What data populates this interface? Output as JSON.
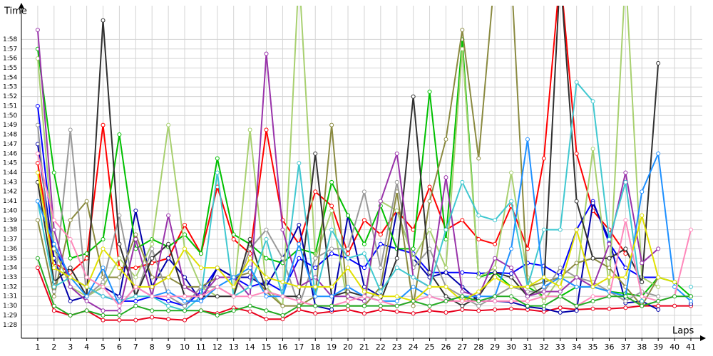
{
  "chart_data": {
    "type": "line",
    "title_y": "Time",
    "title_x": "Laps",
    "grid": true,
    "xlim": [
      0,
      41.7
    ],
    "ylim": [
      86.6,
      120.5
    ],
    "xticks": [
      1,
      2,
      3,
      4,
      5,
      6,
      7,
      8,
      9,
      10,
      11,
      12,
      13,
      14,
      15,
      16,
      17,
      18,
      19,
      20,
      21,
      22,
      23,
      24,
      25,
      26,
      27,
      28,
      29,
      30,
      31,
      32,
      33,
      34,
      35,
      36,
      37,
      38,
      39,
      40,
      41
    ],
    "yticks": [
      {
        "value": 88,
        "label": "1:28"
      },
      {
        "value": 89,
        "label": "1:29"
      },
      {
        "value": 90,
        "label": "1:30"
      },
      {
        "value": 91,
        "label": "1:31"
      },
      {
        "value": 92,
        "label": "1:32"
      },
      {
        "value": 93,
        "label": "1:33"
      },
      {
        "value": 94,
        "label": "1:34"
      },
      {
        "value": 95,
        "label": "1:35"
      },
      {
        "value": 96,
        "label": "1:36"
      },
      {
        "value": 97,
        "label": "1:37"
      },
      {
        "value": 98,
        "label": "1:38"
      },
      {
        "value": 99,
        "label": "1:39"
      },
      {
        "value": 100,
        "label": "1:40"
      },
      {
        "value": 101,
        "label": "1:41"
      },
      {
        "value": 102,
        "label": "1:42"
      },
      {
        "value": 103,
        "label": "1:43"
      },
      {
        "value": 104,
        "label": "1:44"
      },
      {
        "value": 105,
        "label": "1:45"
      },
      {
        "value": 106,
        "label": "1:46"
      },
      {
        "value": 107,
        "label": "1:47"
      },
      {
        "value": 108,
        "label": "1:48"
      },
      {
        "value": 109,
        "label": "1:49"
      },
      {
        "value": 110,
        "label": "1:50"
      },
      {
        "value": 111,
        "label": "1:51"
      },
      {
        "value": 112,
        "label": "1:52"
      },
      {
        "value": 113,
        "label": "1:53"
      },
      {
        "value": 114,
        "label": "1:54"
      },
      {
        "value": 115,
        "label": "1:55"
      },
      {
        "value": 116,
        "label": "1:56"
      },
      {
        "value": 117,
        "label": "1:57"
      },
      {
        "value": 118,
        "label": "1:58"
      }
    ],
    "x": [
      1,
      2,
      3,
      4,
      5,
      6,
      7,
      8,
      9,
      10,
      11,
      12,
      13,
      14,
      15,
      16,
      17,
      18,
      19,
      20,
      21,
      22,
      23,
      24,
      25,
      26,
      27,
      28,
      29,
      30,
      31,
      32,
      33,
      34,
      35,
      36,
      37,
      38,
      39,
      40,
      41
    ],
    "series": [
      {
        "color": "#ff0000",
        "values": [
          105,
          94.5,
          93.5,
          95,
          109,
          94,
          94,
          94.5,
          95,
          98.5,
          95.5,
          102.5,
          97,
          95.5,
          108.5,
          99,
          96.5,
          102,
          100.5,
          95.5,
          99,
          97.5,
          100,
          98,
          102.5,
          98,
          99,
          97,
          96.5,
          100.5,
          96,
          105.5,
          125,
          106,
          100,
          98,
          95.5,
          null,
          null,
          null,
          null
        ]
      },
      {
        "color": "#e8001c",
        "values": [
          94,
          89.5,
          89,
          89.5,
          88.5,
          88.5,
          88.5,
          88.8,
          88.6,
          88.5,
          89.5,
          89.2,
          89.8,
          89.4,
          88.6,
          88.6,
          89.6,
          89.2,
          89.4,
          89.6,
          89.2,
          89.6,
          89.4,
          89.2,
          89.5,
          89.3,
          89.6,
          89.5,
          89.6,
          89.7,
          89.6,
          89.4,
          89.8,
          89.6,
          89.7,
          89.7,
          89.8,
          90,
          90,
          90,
          90
        ]
      },
      {
        "color": "#0000ff",
        "values": [
          111,
          96,
          93,
          92,
          91,
          90.5,
          90.5,
          91,
          90.5,
          90,
          91.5,
          94,
          93,
          92,
          92.5,
          91.5,
          95,
          94,
          95.5,
          95,
          94,
          96.5,
          96,
          95.5,
          93.5,
          93.5,
          93.5,
          93.4,
          93.5,
          93.4,
          94.5,
          94.2,
          93.2,
          98,
          101,
          96.6,
          94,
          93,
          93,
          null,
          null
        ]
      },
      {
        "color": "#0000aa",
        "values": [
          107,
          95,
          90.5,
          91,
          92,
          91,
          100,
          92,
          95,
          93,
          90.5,
          94,
          93,
          93,
          92,
          95,
          98.5,
          90,
          89.6,
          99.5,
          92,
          91,
          100,
          95,
          93,
          93.5,
          92,
          90.5,
          90.5,
          90.4,
          89.9,
          89.7,
          89.3,
          89.5,
          100.8,
          97,
          90.3,
          90.5,
          89.6,
          null,
          90.2
        ]
      },
      {
        "color": "#00c000",
        "values": [
          117,
          104,
          95,
          95.5,
          97,
          108,
          96,
          97,
          96.2,
          97.5,
          95.5,
          105.5,
          97.5,
          96.5,
          95,
          94.5,
          96,
          95.5,
          103,
          99.5,
          96.5,
          100.5,
          96,
          96,
          112.5,
          97,
          118,
          93,
          93.5,
          92,
          92,
          91,
          91,
          92,
          92,
          91.5,
          91.3,
          91,
          93,
          92.5,
          91
        ]
      },
      {
        "color": "#a8d070",
        "values": [
          116,
          96,
          92,
          91,
          92,
          95,
          93,
          96.5,
          109,
          96,
          92,
          91,
          91,
          108.5,
          92,
          90,
          125,
          95,
          100,
          90,
          90,
          101,
          100,
          95,
          98,
          94,
          117,
          93,
          94,
          104,
          93,
          90.5,
          93,
          93,
          106.5,
          92,
          125,
          93,
          92,
          null,
          null
        ]
      },
      {
        "color": "#8a8a40",
        "values": [
          99,
          91,
          99,
          101,
          93,
          93,
          97.5,
          93,
          93,
          92,
          92,
          93,
          93,
          93.5,
          91.5,
          90,
          90,
          91,
          109,
          90,
          90,
          92,
          102,
          90,
          101,
          107.5,
          119,
          105.5,
          125,
          125,
          92,
          92.5,
          93,
          94.5,
          95,
          94,
          92,
          90,
          93,
          null,
          null
        ]
      },
      {
        "color": "#999999",
        "values": [
          109,
          91.5,
          108.5,
          91,
          92.5,
          99.5,
          91,
          96,
          91,
          90,
          92,
          92,
          91,
          96,
          98,
          95,
          90,
          95,
          96,
          96,
          102,
          94,
          103,
          94,
          96,
          92,
          91,
          90,
          91,
          92,
          91.5,
          91.5,
          94,
          93,
          92.5,
          91.5,
          90.5,
          91.5,
          91,
          null,
          null
        ]
      },
      {
        "color": "#303030",
        "values": [
          103,
          92.5,
          94,
          91,
          120,
          96.5,
          91,
          95,
          96.5,
          91,
          91,
          91,
          91,
          97,
          91.5,
          91,
          91,
          106,
          91,
          91.5,
          91,
          90.5,
          95,
          112,
          93.5,
          91,
          90,
          91,
          93.5,
          93,
          91,
          92,
          125,
          101,
          95,
          95,
          96,
          92.5,
          115.5,
          null,
          null
        ]
      },
      {
        "color": "#9933aa",
        "values": [
          119,
          98,
          92,
          90.5,
          89.5,
          89.5,
          97,
          91,
          99.5,
          92,
          91,
          93,
          93,
          91,
          116.5,
          98,
          92,
          93,
          91,
          91,
          90.5,
          101,
          106,
          93,
          92,
          103.5,
          91.5,
          91,
          95,
          94,
          91,
          91.5,
          91.5,
          93,
          92,
          96.5,
          104,
          94.5,
          96,
          null,
          null
        ]
      },
      {
        "color": "#40c8d0",
        "values": [
          101,
          92,
          93,
          92,
          91,
          90.5,
          91,
          91,
          90,
          89.5,
          91,
          104,
          91,
          92,
          97,
          91,
          105,
          91,
          98,
          95,
          95.5,
          91.5,
          94,
          93,
          92,
          98,
          103,
          99.5,
          99,
          101,
          92,
          98,
          98,
          113.5,
          111.5,
          97,
          103,
          90.5,
          null,
          null,
          92
        ]
      },
      {
        "color": "#1e90ff",
        "values": [
          101,
          96.5,
          93,
          91,
          94,
          90,
          92,
          91,
          91.5,
          90.5,
          90.5,
          92,
          93,
          94,
          91,
          91,
          96.5,
          91,
          91,
          92,
          91,
          90.5,
          90.5,
          92,
          91,
          90.5,
          91,
          91,
          91,
          96,
          107.5,
          92,
          93,
          92,
          92,
          91.5,
          91,
          102,
          106,
          92,
          90.5
        ]
      },
      {
        "color": "#e0e000",
        "values": [
          104,
          94,
          93,
          92,
          96,
          94,
          92,
          92,
          93,
          96,
          94,
          94,
          92,
          95,
          93,
          92.5,
          92,
          92,
          92,
          94,
          91.5,
          91,
          91,
          90.5,
          92,
          92,
          90.5,
          91.5,
          93,
          92,
          92,
          93,
          92,
          98,
          92,
          93,
          93,
          99.5,
          93,
          92.5,
          null
        ]
      },
      {
        "color": "#ff88bb",
        "values": [
          106,
          99,
          97,
          93,
          92,
          90,
          92,
          91,
          91,
          91,
          91,
          92,
          91,
          91,
          91.5,
          91,
          90.5,
          90,
          90,
          90.5,
          91,
          90.5,
          90,
          90.5,
          91,
          90.5,
          90.5,
          90.5,
          90.5,
          90.5,
          90.5,
          91,
          91,
          90,
          91,
          91,
          99,
          91,
          90.5,
          91,
          98
        ]
      },
      {
        "color": "#22aa22",
        "values": [
          95,
          90,
          89,
          89.5,
          89,
          89,
          90,
          89.5,
          89.5,
          89.5,
          89.5,
          89,
          89.5,
          90,
          89.5,
          89,
          90,
          90,
          90,
          90,
          90,
          90,
          90,
          90.5,
          90,
          90.5,
          91,
          90.5,
          91,
          91,
          90,
          90,
          91,
          90,
          90.5,
          91,
          91,
          90,
          90.5,
          91,
          91
        ]
      }
    ]
  }
}
